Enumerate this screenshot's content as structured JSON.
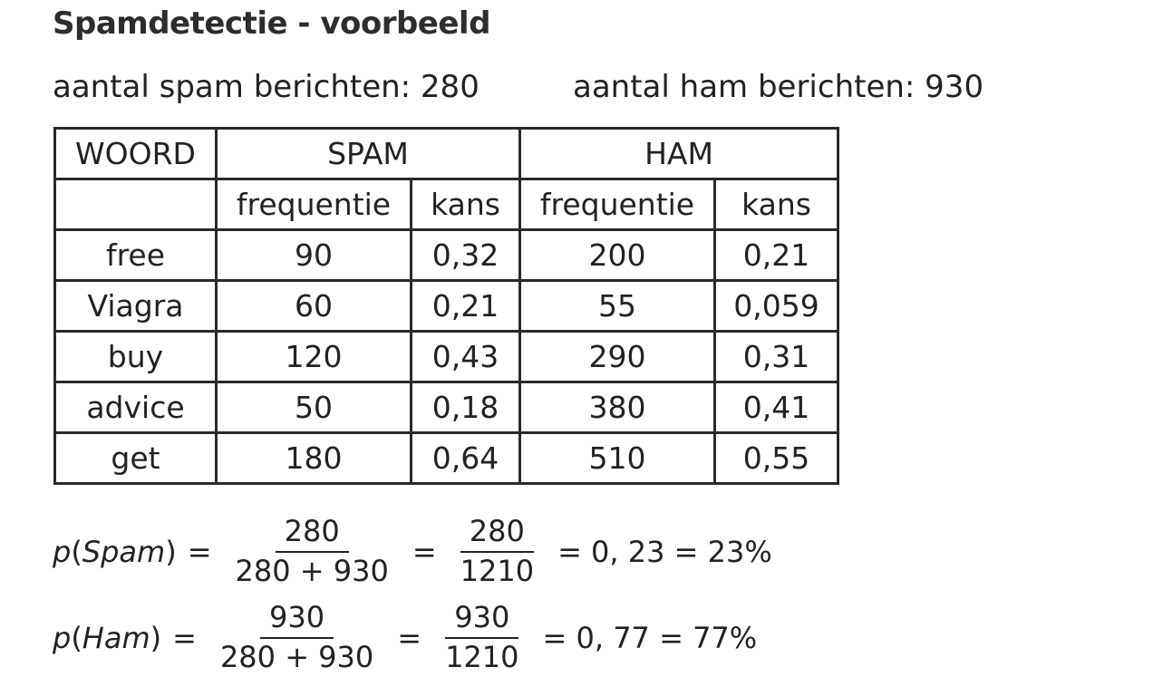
{
  "title": "Spamdetectie - voorbeeld",
  "counts": {
    "spam": "aantal spam berichten: 280",
    "ham": "aantal ham berichten: 930"
  },
  "table": {
    "header": {
      "word": "WOORD",
      "spam": "SPAM",
      "ham": "HAM"
    },
    "subheader": {
      "spam_freq": "frequentie",
      "spam_kans": "kans",
      "ham_freq": "frequentie",
      "ham_kans": "kans"
    },
    "rows": [
      {
        "word": "free",
        "spam_freq": "90",
        "spam_kans": "0,32",
        "ham_freq": "200",
        "ham_kans": "0,21"
      },
      {
        "word": "Viagra",
        "spam_freq": "60",
        "spam_kans": "0,21",
        "ham_freq": "55",
        "ham_kans": "0,059"
      },
      {
        "word": "buy",
        "spam_freq": "120",
        "spam_kans": "0,43",
        "ham_freq": "290",
        "ham_kans": "0,31"
      },
      {
        "word": "advice",
        "spam_freq": "50",
        "spam_kans": "0,18",
        "ham_freq": "380",
        "ham_kans": "0,41"
      },
      {
        "word": "get",
        "spam_freq": "180",
        "spam_kans": "0,64",
        "ham_freq": "510",
        "ham_kans": "0,55"
      }
    ]
  },
  "formulas": [
    {
      "p": "p",
      "open": "(",
      "var": "Spam",
      "close": ")",
      "eq1": "=",
      "frac1_num": "280",
      "frac1_den": "280 + 930",
      "eq2": "=",
      "frac2_num": "280",
      "frac2_den": "1210",
      "result": "= 0, 23 = 23%"
    },
    {
      "p": "p",
      "open": "(",
      "var": "Ham",
      "close": ")",
      "eq1": "=",
      "frac1_num": "930",
      "frac1_den": "280 + 930",
      "eq2": "=",
      "frac2_num": "930",
      "frac2_den": "1210",
      "result": "= 0, 77 = 77%"
    }
  ]
}
